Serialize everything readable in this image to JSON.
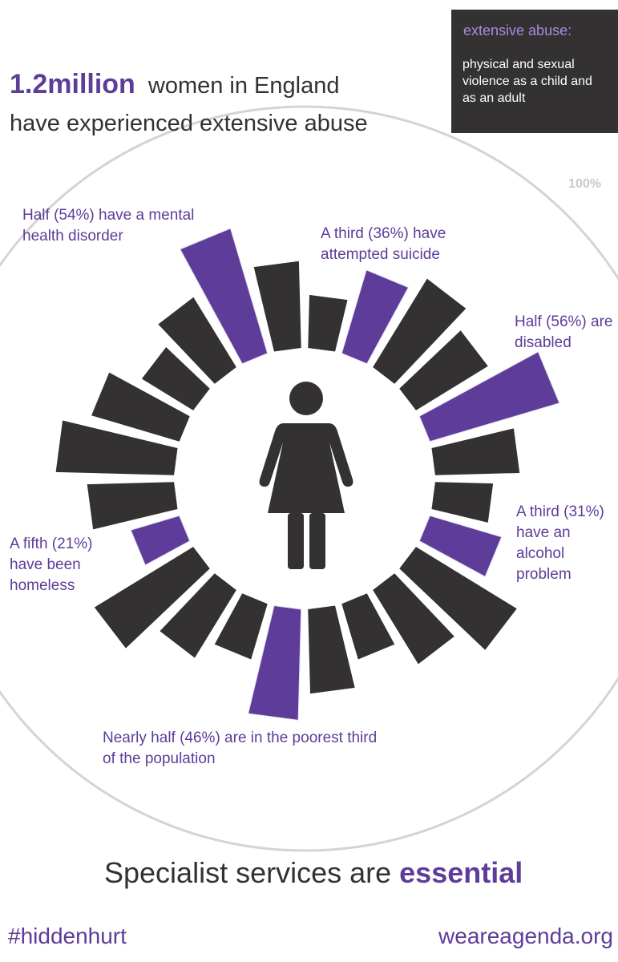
{
  "header": {
    "figure": "1.2million",
    "text": "women in England",
    "text2": "have experienced extensive abuse"
  },
  "definition": {
    "term": "extensive abuse:",
    "text": "physical and sexual violence as a child and as an adult"
  },
  "chart_data": {
    "type": "radial-bar",
    "values": [
      22,
      36,
      43,
      35,
      56,
      35,
      24,
      31,
      49,
      36,
      24,
      35,
      46,
      24,
      33,
      48,
      21,
      36,
      49,
      38,
      25,
      34,
      54,
      36
    ],
    "labels": [
      null,
      "A third (36%) have attempted suicide",
      null,
      null,
      "Half (56%) are disabled",
      null,
      null,
      "A third (31%) have an alcohol problem",
      null,
      null,
      null,
      null,
      "Nearly half (46%) are in the poorest third of the population",
      null,
      null,
      null,
      "A fifth (21%) have been homeless",
      null,
      null,
      null,
      null,
      null,
      "Half (54%) have a mental health disorder",
      null
    ],
    "color": "#333132",
    "highlight_color": "#5e3c99",
    "rlim": [
      0,
      100
    ],
    "rticks": [
      {
        "value": 100,
        "label": "100%"
      }
    ]
  },
  "footer": {
    "tagline": "Specialist services are",
    "emphasis": "essential",
    "hashtag": "#hiddenhurt",
    "site": "weareagenda.org"
  }
}
